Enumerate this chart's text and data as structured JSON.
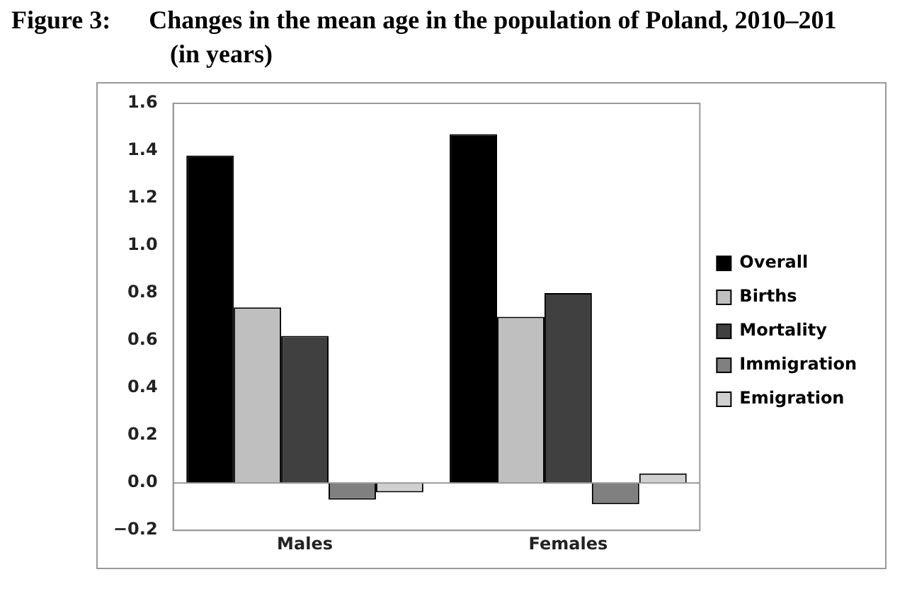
{
  "chart_data": {
    "type": "bar",
    "title": "Figure 3:      Changes in the mean age in the population of Poland, 2010–201",
    "subtitle": "(in years)",
    "categories": [
      "Males",
      "Females"
    ],
    "series": [
      {
        "name": "Overall",
        "color": "#000000",
        "values": [
          1.38,
          1.47
        ]
      },
      {
        "name": "Births",
        "color": "#bfbfbf",
        "values": [
          0.74,
          0.7
        ]
      },
      {
        "name": "Mortality",
        "color": "#404040",
        "values": [
          0.62,
          0.8
        ]
      },
      {
        "name": "Immigration",
        "color": "#808080",
        "values": [
          -0.07,
          -0.09
        ]
      },
      {
        "name": "Emigration",
        "color": "#d0d0d0",
        "values": [
          -0.04,
          0.04
        ]
      }
    ],
    "ylim": [
      -0.2,
      1.6
    ],
    "yticks": [
      {
        "value": -0.2,
        "label": "−0.2"
      },
      {
        "value": 0,
        "label": "0.0"
      },
      0.2,
      0.4,
      0.6,
      0.8,
      {
        "value": 1,
        "label": "1.0"
      },
      1.2,
      1.4,
      1.6
    ],
    "ref_lines": [
      {
        "axis": "y",
        "value": 0,
        "color": "#999999"
      }
    ],
    "grid": false,
    "legend": "right"
  }
}
